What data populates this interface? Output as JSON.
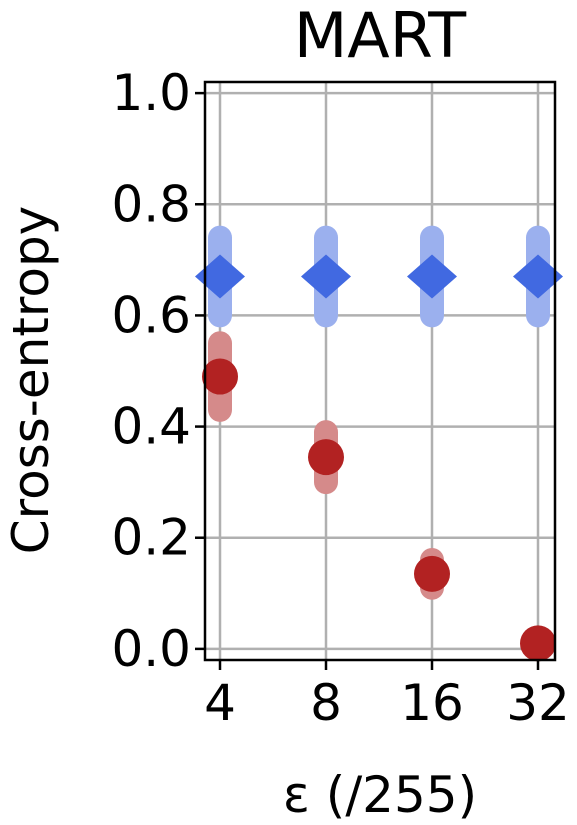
{
  "chart_data": {
    "type": "scatter",
    "title": "MART",
    "xlabel": "ε (/255)",
    "ylabel": "Cross-entropy",
    "categories": [
      "4",
      "8",
      "16",
      "32"
    ],
    "ylim": [
      -0.02,
      1.02
    ],
    "yticks": [
      "0.0",
      "0.2",
      "0.4",
      "0.6",
      "0.8",
      "1.0"
    ],
    "grid": true,
    "legend": "none",
    "series": [
      {
        "color": "#4169e1",
        "error_color": "#9bb0ee",
        "marker": "diamond",
        "values": [
          0.67,
          0.67,
          0.67,
          0.67
        ],
        "err_low": [
          0.6,
          0.6,
          0.6,
          0.6
        ],
        "err_high": [
          0.74,
          0.74,
          0.74,
          0.74
        ]
      },
      {
        "color": "#b22222",
        "error_color": "#d58a8a",
        "marker": "circle",
        "values": [
          0.49,
          0.345,
          0.135,
          0.01
        ],
        "err_low": [
          0.43,
          0.3,
          0.11,
          0.0
        ],
        "err_high": [
          0.55,
          0.39,
          0.16,
          0.02
        ]
      }
    ]
  }
}
